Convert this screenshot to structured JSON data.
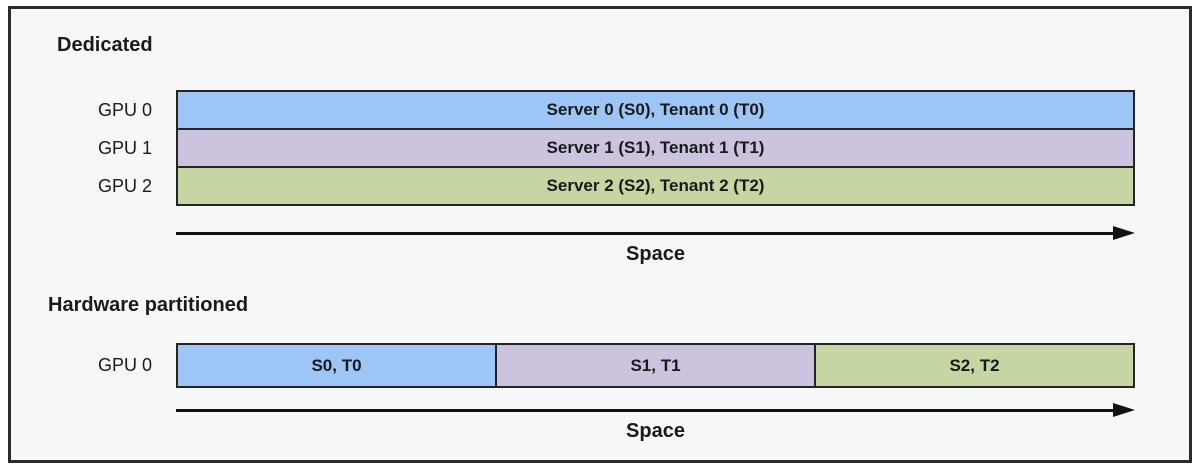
{
  "colors": {
    "blue": "#9DC5F6",
    "lavender": "#CCC4DE",
    "green": "#C5D6A2",
    "bar_border": "#242424",
    "frame_background": "#F7F7F8",
    "arrow": "#121212"
  },
  "dedicated": {
    "title": "Dedicated",
    "rows": [
      {
        "label": "GPU 0",
        "text": "Server 0 (S0), Tenant 0 (T0)",
        "color": "#9DC5F6"
      },
      {
        "label": "GPU 1",
        "text": "Server 1 (S1), Tenant 1 (T1)",
        "color": "#CCC4DE"
      },
      {
        "label": "GPU 2",
        "text": "Server 2 (S2), Tenant 2 (T2)",
        "color": "#C5D6A2"
      }
    ],
    "axis_label": "Space"
  },
  "partitioned": {
    "title": "Hardware partitioned",
    "row_label": "GPU 0",
    "segments": [
      {
        "text": "S0, T0",
        "color": "#9DC5F6"
      },
      {
        "text": "S1, T1",
        "color": "#CCC4DE"
      },
      {
        "text": "S2, T2",
        "color": "#C5D6A2"
      }
    ],
    "axis_label": "Space"
  }
}
